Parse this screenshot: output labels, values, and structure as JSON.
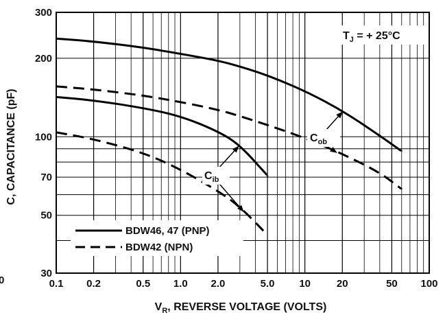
{
  "chart_data": {
    "type": "line",
    "xlabel_main": "V",
    "xlabel_sub": "R",
    "xlabel_rest": ", REVERSE VOLTAGE (VOLTS)",
    "ylabel": "C, CAPACITANCE (pF)",
    "x_scale": "log",
    "y_scale": "log",
    "xlim": [
      0.1,
      100
    ],
    "ylim": [
      30,
      300
    ],
    "grid": true,
    "x_ticks": [
      "0.1",
      "0.2",
      "0.5",
      "1.0",
      "2.0",
      "5.0",
      "10",
      "20",
      "50",
      "100"
    ],
    "y_ticks": [
      "30",
      "50",
      "70",
      "100",
      "200",
      "300"
    ],
    "stray_label": "0",
    "annotation_tj_main": "T",
    "annotation_tj_sub": "J",
    "annotation_tj_rest": " = + 25°C",
    "annotation_cob_main": "C",
    "annotation_cob_sub": "ob",
    "annotation_cib_main": "C",
    "annotation_cib_sub": "ib",
    "legend": [
      {
        "label": "BDW46, 47 (PNP)",
        "style": "solid"
      },
      {
        "label": "BDW42 (NPN)",
        "style": "dashed"
      }
    ],
    "series": [
      {
        "style": "solid",
        "points": [
          [
            0.1,
            238
          ],
          [
            0.2,
            232
          ],
          [
            0.5,
            220
          ],
          [
            1,
            208
          ],
          [
            2,
            196
          ],
          [
            3,
            186
          ],
          [
            5,
            172
          ],
          [
            10,
            150
          ],
          [
            20,
            126
          ],
          [
            40,
            101
          ],
          [
            60,
            88
          ]
        ]
      },
      {
        "style": "dashed",
        "points": [
          [
            0.1,
            156
          ],
          [
            0.2,
            152
          ],
          [
            0.5,
            144
          ],
          [
            1,
            136
          ],
          [
            2,
            127
          ],
          [
            3,
            120
          ],
          [
            5,
            111
          ],
          [
            10,
            99
          ],
          [
            20,
            86
          ],
          [
            40,
            73
          ],
          [
            60,
            63
          ]
        ]
      },
      {
        "style": "solid",
        "points": [
          [
            0.1,
            142
          ],
          [
            0.2,
            138
          ],
          [
            0.5,
            129
          ],
          [
            1,
            120
          ],
          [
            2,
            105
          ],
          [
            3,
            93
          ],
          [
            5,
            71
          ]
        ]
      },
      {
        "style": "dashed",
        "points": [
          [
            0.1,
            104
          ],
          [
            0.2,
            98
          ],
          [
            0.5,
            87
          ],
          [
            1,
            75
          ],
          [
            2,
            62
          ],
          [
            3,
            54
          ],
          [
            5,
            42
          ]
        ]
      }
    ],
    "line_color": "#000000",
    "grid_color": "#000000"
  }
}
